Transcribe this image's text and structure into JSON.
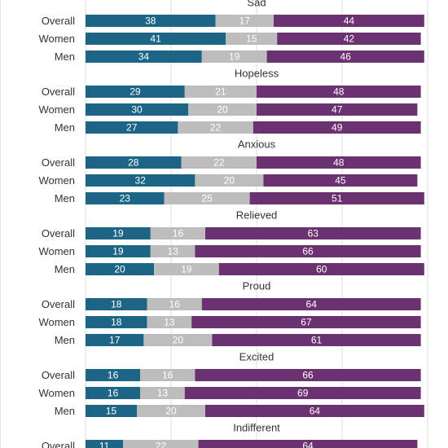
{
  "chart_data": {
    "type": "bar",
    "orientation": "horizontal",
    "stacked": true,
    "grid": true,
    "xlim": [
      0,
      100
    ],
    "series_colors": [
      "#1d6587",
      "#bdbdbd",
      "#6b3170"
    ],
    "groups": [
      {
        "title": "Sad",
        "rows": [
          {
            "label": "Overall",
            "values": [
              38,
              17,
              44
            ]
          },
          {
            "label": "Women",
            "values": [
              41,
              15,
              42
            ]
          },
          {
            "label": "Men",
            "values": [
              34,
              19,
              46
            ]
          }
        ]
      },
      {
        "title": "Hopeless",
        "rows": [
          {
            "label": "Overall",
            "values": [
              29,
              21,
              48
            ]
          },
          {
            "label": "Women",
            "values": [
              30,
              20,
              47
            ]
          },
          {
            "label": "Men",
            "values": [
              27,
              22,
              49
            ]
          }
        ]
      },
      {
        "title": "Anxious",
        "rows": [
          {
            "label": "Overall",
            "values": [
              28,
              22,
              48
            ]
          },
          {
            "label": "Women",
            "values": [
              32,
              20,
              45
            ]
          },
          {
            "label": "Men",
            "values": [
              23,
              25,
              51
            ]
          }
        ]
      },
      {
        "title": "Relieved",
        "rows": [
          {
            "label": "Overall",
            "values": [
              19,
              16,
              63
            ]
          },
          {
            "label": "Women",
            "values": [
              19,
              13,
              66
            ]
          },
          {
            "label": "Men",
            "values": [
              20,
              19,
              60
            ]
          }
        ]
      },
      {
        "title": "Proud",
        "rows": [
          {
            "label": "Overall",
            "values": [
              18,
              16,
              64
            ]
          },
          {
            "label": "Women",
            "values": [
              18,
              13,
              67
            ]
          },
          {
            "label": "Men",
            "values": [
              17,
              20,
              61
            ]
          }
        ]
      },
      {
        "title": "Excited",
        "rows": [
          {
            "label": "Overall",
            "values": [
              16,
              16,
              66
            ]
          },
          {
            "label": "Women",
            "values": [
              16,
              13,
              69
            ]
          },
          {
            "label": "Men",
            "values": [
              15,
              20,
              64
            ]
          }
        ]
      },
      {
        "title": "Indifferent",
        "rows": [
          {
            "label": "Overall",
            "values": [
              11,
              22,
              64
            ]
          }
        ]
      }
    ]
  }
}
